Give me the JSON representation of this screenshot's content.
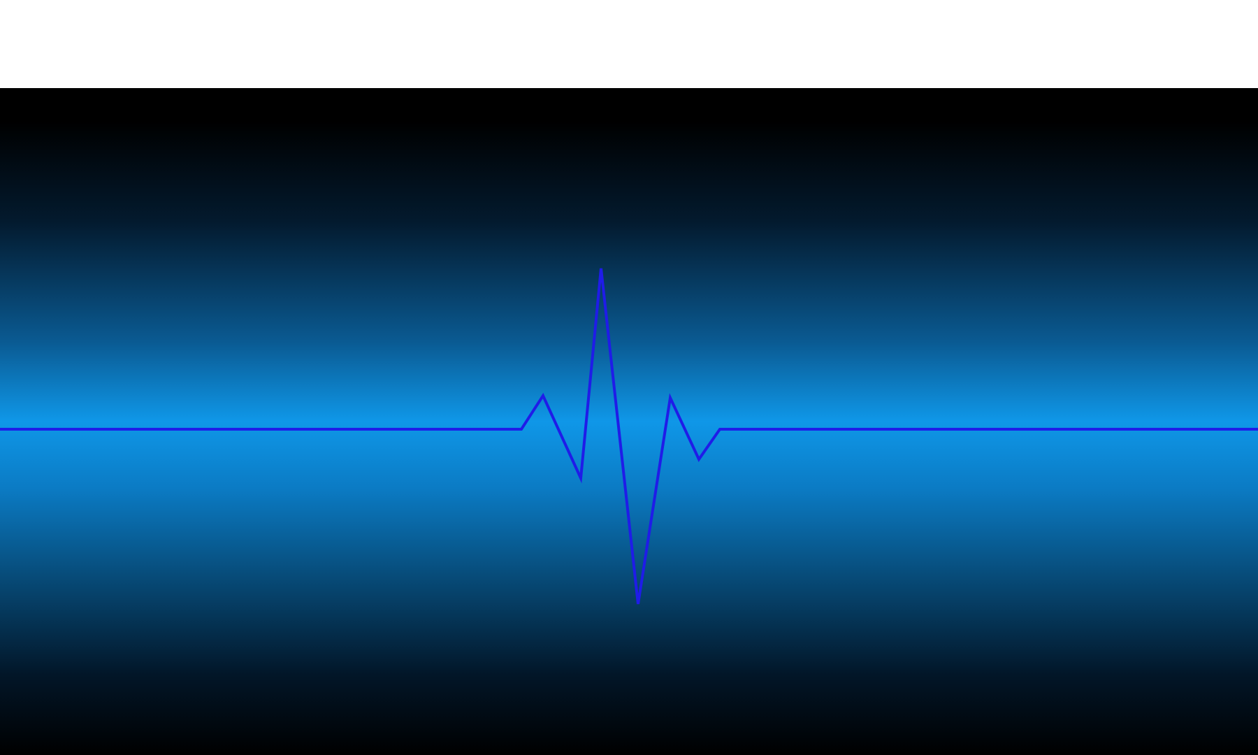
{
  "scene": {
    "subject": "heartbeat-waveform",
    "line_color": "#1f1ce8",
    "background_gradient": [
      "#000000",
      "#0f97e8",
      "#000000"
    ],
    "top_band_color": "#ffffff"
  }
}
